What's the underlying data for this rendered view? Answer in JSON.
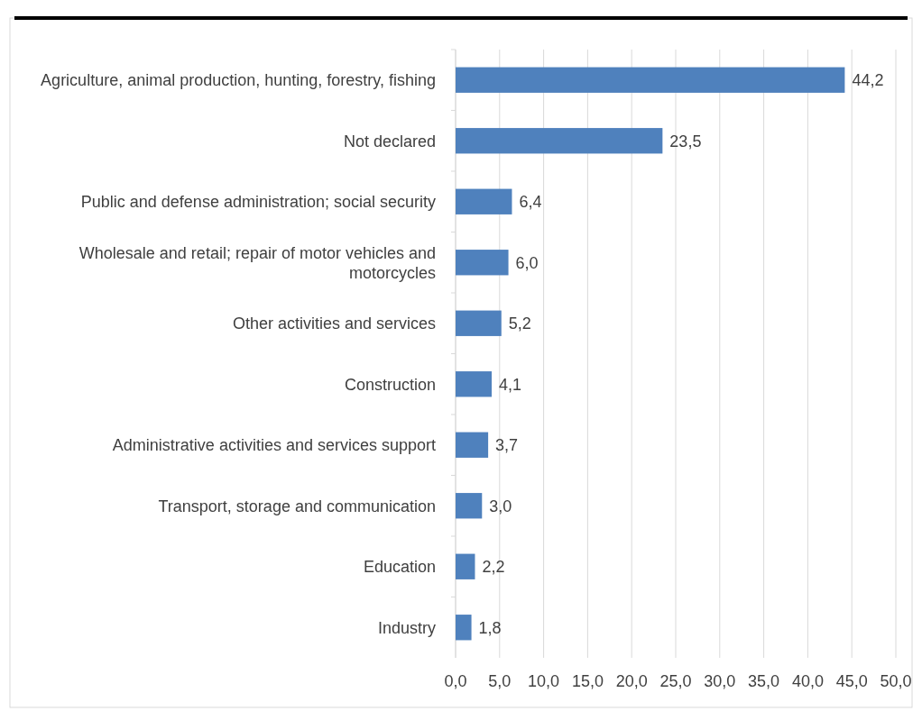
{
  "chart_data": {
    "type": "bar",
    "orientation": "horizontal",
    "categories": [
      "Agriculture, animal production, hunting, forestry, fishing",
      "Not declared",
      "Public and defense administration; social security",
      "Wholesale and retail; repair of motor vehicles and motorcycles",
      "Other activities and services",
      "Construction",
      "Administrative activities and services support",
      "Transport, storage and communication",
      "Education",
      "Industry"
    ],
    "values": [
      44.2,
      23.5,
      6.4,
      6.0,
      5.2,
      4.1,
      3.7,
      3.0,
      2.2,
      1.8
    ],
    "value_labels": [
      "44,2",
      "23,5",
      "6,4",
      "6,0",
      "5,2",
      "4,1",
      "3,7",
      "3,0",
      "2,2",
      "1,8"
    ],
    "color": "#4f81bd",
    "xlim": [
      0,
      50
    ],
    "xticks": [
      {
        "value": 0,
        "label": "0,0"
      },
      {
        "value": 5,
        "label": "5,0"
      },
      {
        "value": 10,
        "label": "10,0"
      },
      {
        "value": 15,
        "label": "15,0"
      },
      {
        "value": 20,
        "label": "20,0"
      },
      {
        "value": 25,
        "label": "25,0"
      },
      {
        "value": 30,
        "label": "30,0"
      },
      {
        "value": 35,
        "label": "35,0"
      },
      {
        "value": 40,
        "label": "40,0"
      },
      {
        "value": 45,
        "label": "45,0"
      },
      {
        "value": 50,
        "label": "50,0"
      }
    ],
    "grid": "x"
  }
}
